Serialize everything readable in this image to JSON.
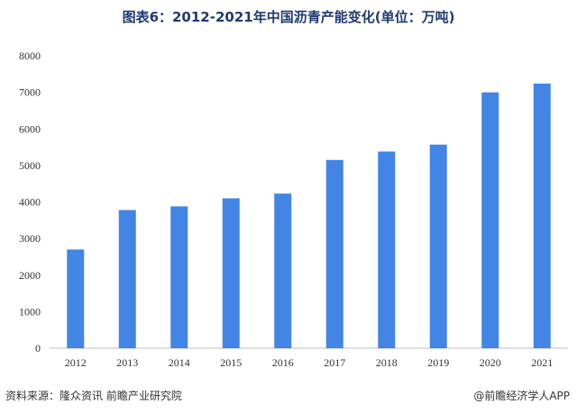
{
  "title": "图表6：2012-2021年中国沥青产能变化(单位：万吨)",
  "footer": {
    "source": "资料来源：隆众资讯 前瞻产业研究院",
    "brand": "@前瞻经济学人APP"
  },
  "colors": {
    "bar": "#4285e4",
    "title": "#1f3b73",
    "axis": "#bfbfbf"
  },
  "chart_data": {
    "type": "bar",
    "title": "图表6：2012-2021年中国沥青产能变化(单位：万吨)",
    "xlabel": "",
    "ylabel": "",
    "categories": [
      "2012",
      "2013",
      "2014",
      "2015",
      "2016",
      "2017",
      "2018",
      "2019",
      "2020",
      "2021"
    ],
    "values": [
      2700,
      3780,
      3880,
      4100,
      4230,
      5150,
      5380,
      5570,
      7000,
      7240
    ],
    "ylim": [
      0,
      8000
    ],
    "yticks": [
      "0",
      "1000",
      "2000",
      "3000",
      "4000",
      "5000",
      "6000",
      "7000",
      "8000"
    ],
    "grid": false,
    "legend": "none"
  }
}
